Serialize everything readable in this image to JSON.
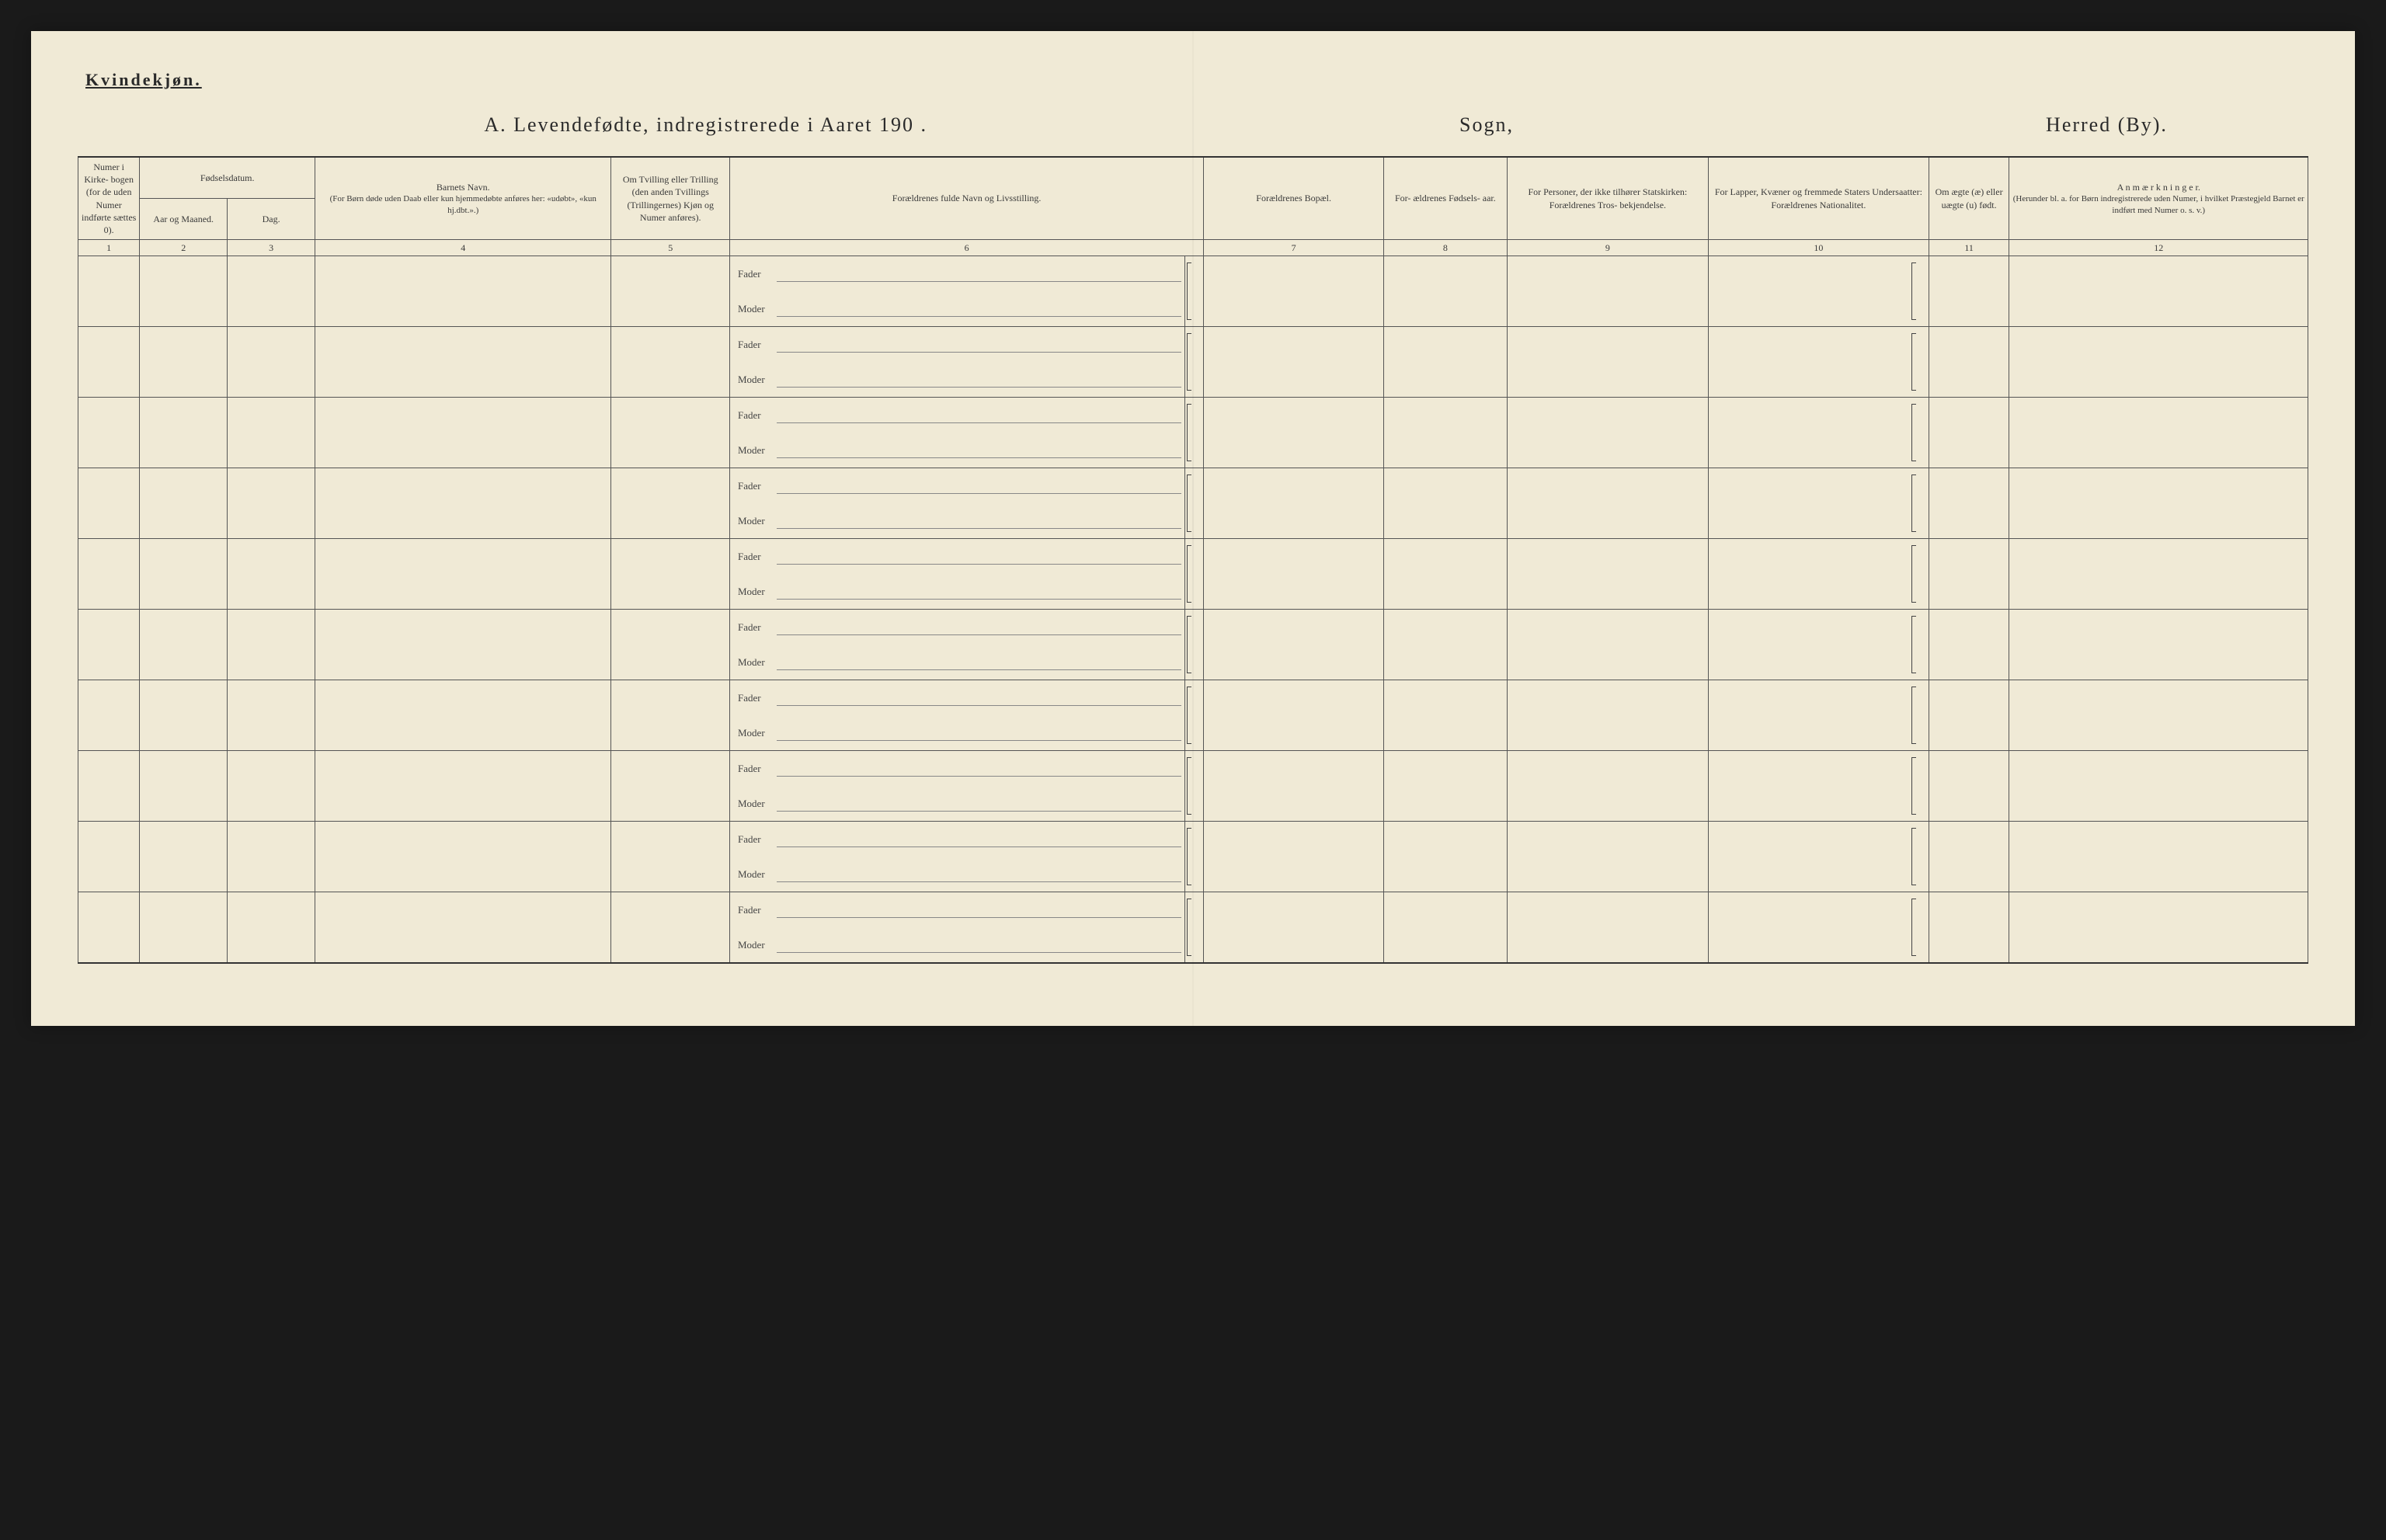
{
  "colors": {
    "page_background": "#f0ead6",
    "page_surround": "#1a1a1a",
    "text": "#2a2a2a",
    "border": "#555555",
    "border_heavy": "#333333",
    "underline": "#888888"
  },
  "typography": {
    "header_fontsize_pt": 20,
    "body_fontsize_pt": 10,
    "font_family": "serif"
  },
  "layout": {
    "num_body_rows": 10,
    "column_widths_pct": [
      2.6,
      3.7,
      3.7,
      12.5,
      5.0,
      19.2,
      7.6,
      5.2,
      8.5,
      8.5,
      3.4,
      12.6
    ]
  },
  "header": {
    "gender": "Kvindekjøn.",
    "title": "A.  Levendefødte, indregistrerede i Aaret 190   .",
    "sogn": "Sogn,",
    "herred": "Herred (By)."
  },
  "columns": {
    "col1": "Numer i Kirke- bogen (for de uden Numer indførte sættes 0).",
    "col2_group": "Fødselsdatum.",
    "col2a": "Aar og Maaned.",
    "col2b": "Dag.",
    "col4": "Barnets Navn.",
    "col4_sub": "(For Børn døde uden Daab eller kun hjemmedøbte anføres her: «udøbt», «kun hj.dbt.».)",
    "col5": "Om Tvilling eller Trilling (den anden Tvillings (Trillingernes) Kjøn og Numer anføres).",
    "col6": "Forældrenes fulde Navn og Livsstilling.",
    "col7": "Forældrenes Bopæl.",
    "col8": "For- ældrenes Fødsels- aar.",
    "col9": "For Personer, der ikke tilhører Statskirken: Forældrenes Tros- bekjendelse.",
    "col10": "For Lapper, Kvæner og fremmede Staters Undersaatter: Forældrenes Nationalitet.",
    "col11": "Om ægte (æ) eller uægte (u) født.",
    "col12": "A n m æ r k n i n g e r.",
    "col12_sub": "(Herunder bl. a. for Børn indregistrerede uden Numer, i hvilket Præstegjeld Barnet er indført med Numer o. s. v.)"
  },
  "column_numbers": [
    "1",
    "2",
    "3",
    "4",
    "5",
    "6",
    "7",
    "8",
    "9",
    "10",
    "11",
    "12"
  ],
  "row_labels": {
    "father": "Fader",
    "mother": "Moder"
  }
}
